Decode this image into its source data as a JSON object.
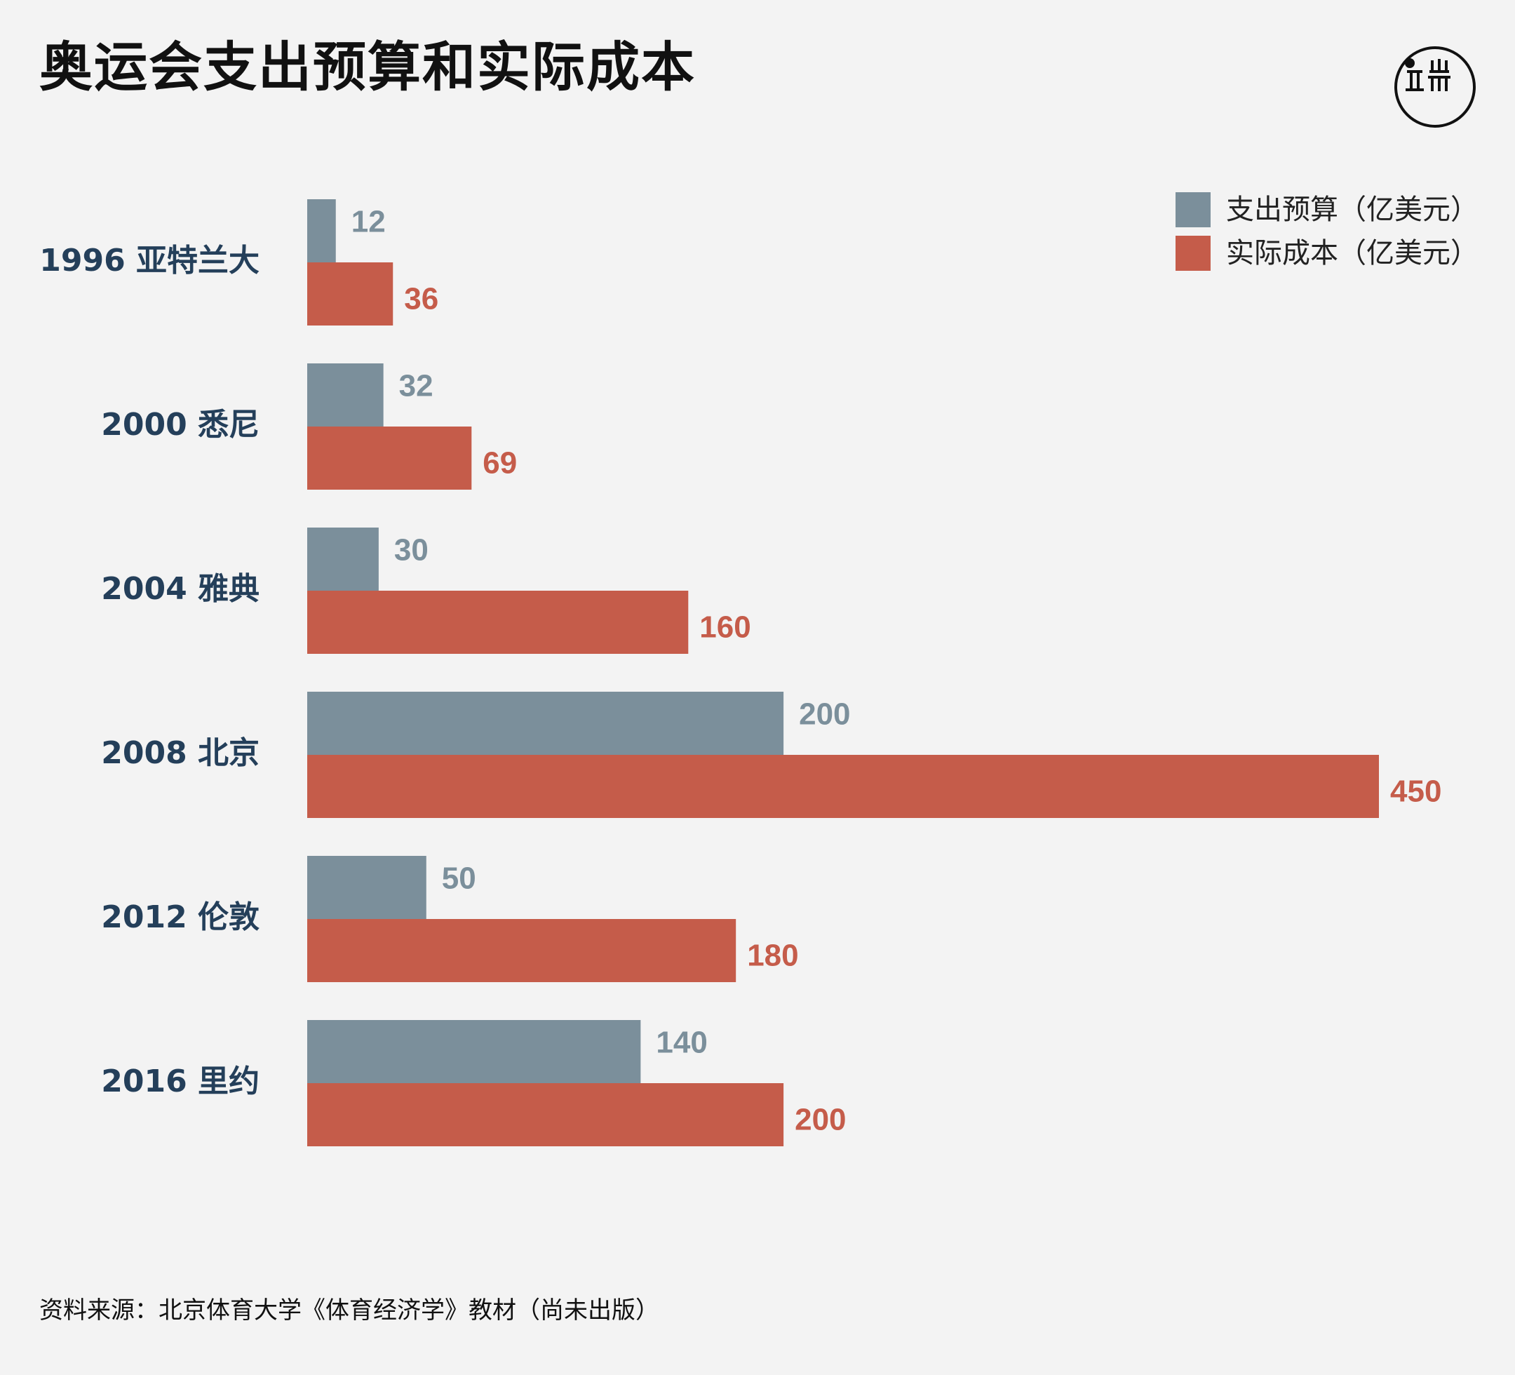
{
  "title": "奥运会支出预算和实际成本",
  "source": "资料来源：北京体育大学《体育经济学》教材（尚未出版）",
  "logo": {
    "icon": "duan-logo-icon"
  },
  "colors": {
    "budget": "#7b8f9b",
    "actual": "#c55c4a",
    "category_label": "#243f5a",
    "background": "#f3f3f3"
  },
  "chart_data": {
    "type": "bar",
    "orientation": "horizontal",
    "categories": [
      "1996 亚特兰大",
      "2000 悉尼",
      "2004 雅典",
      "2008 北京",
      "2012 伦敦",
      "2016 里约"
    ],
    "series": [
      {
        "name": "支出预算（亿美元）",
        "values": [
          12,
          32,
          30,
          200,
          50,
          140
        ]
      },
      {
        "name": "实际成本（亿美元）",
        "values": [
          36,
          69,
          160,
          450,
          180,
          200
        ]
      }
    ],
    "xlim": [
      0,
      450
    ],
    "grid": false,
    "legend": "top-right",
    "data_labels": true
  }
}
